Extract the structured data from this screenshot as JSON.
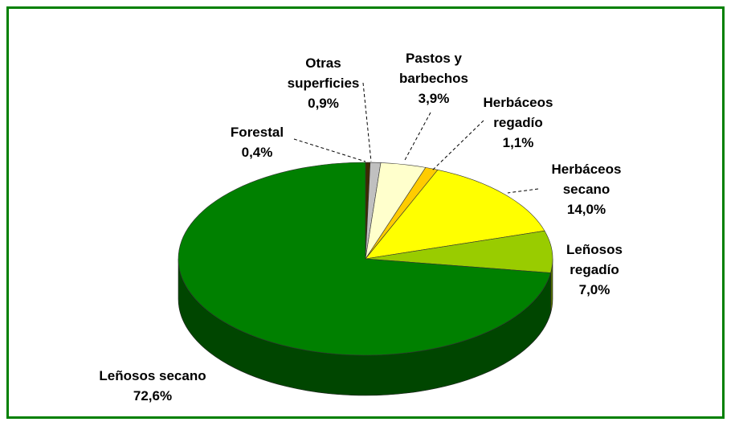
{
  "chart_data": {
    "type": "pie",
    "categories": [
      "Forestal",
      "Otras superficies",
      "Pastos y barbechos",
      "Herbáceos regadío",
      "Herbáceos secano",
      "Leñosos regadío",
      "Leñosos secano"
    ],
    "values": [
      0.4,
      0.9,
      3.9,
      1.1,
      14.0,
      7.0,
      72.6
    ],
    "value_labels": [
      "0,4%",
      "0,9%",
      "3,9%",
      "1,1%",
      "14,0%",
      "7,0%",
      "72,6%"
    ],
    "colors": [
      "#3d2b00",
      "#c0c0c0",
      "#ffffcc",
      "#ffcc00",
      "#ffff00",
      "#99cc00",
      "#008000"
    ]
  }
}
